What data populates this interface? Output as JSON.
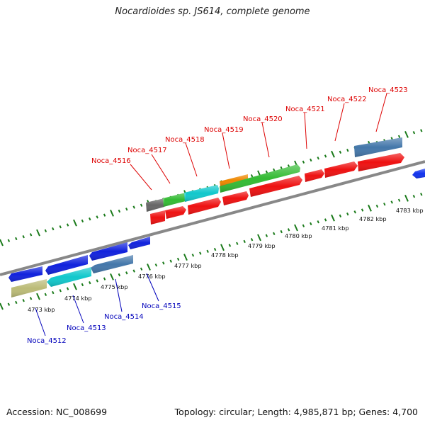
{
  "title": "Nocardioides sp. JS614, complete genome",
  "footer": {
    "accession": "Accession: NC_008699",
    "summary": "Topology: circular; Length: 4,985,871 bp; Genes: 4,700"
  },
  "colors": {
    "label_top": "#dd0000",
    "label_bottom": "#0000bb",
    "tick": "#1a7a1a",
    "backbone": "#888888"
  },
  "scale_labels": [
    "4773 kbp",
    "4774 kbp",
    "4775 kbp",
    "4776 kbp",
    "4777 kbp",
    "4778 kbp",
    "4779 kbp",
    "4780 kbp",
    "4781 kbp",
    "4782 kbp",
    "4783 kbp"
  ],
  "genes_top": [
    "Noca_4516",
    "Noca_4517",
    "Noca_4518",
    "Noca_4519",
    "Noca_4520",
    "Noca_4521",
    "Noca_4522",
    "Noca_4523"
  ],
  "genes_bottom": [
    "Noca_4512",
    "Noca_4513",
    "Noca_4514",
    "Noca_4515"
  ]
}
